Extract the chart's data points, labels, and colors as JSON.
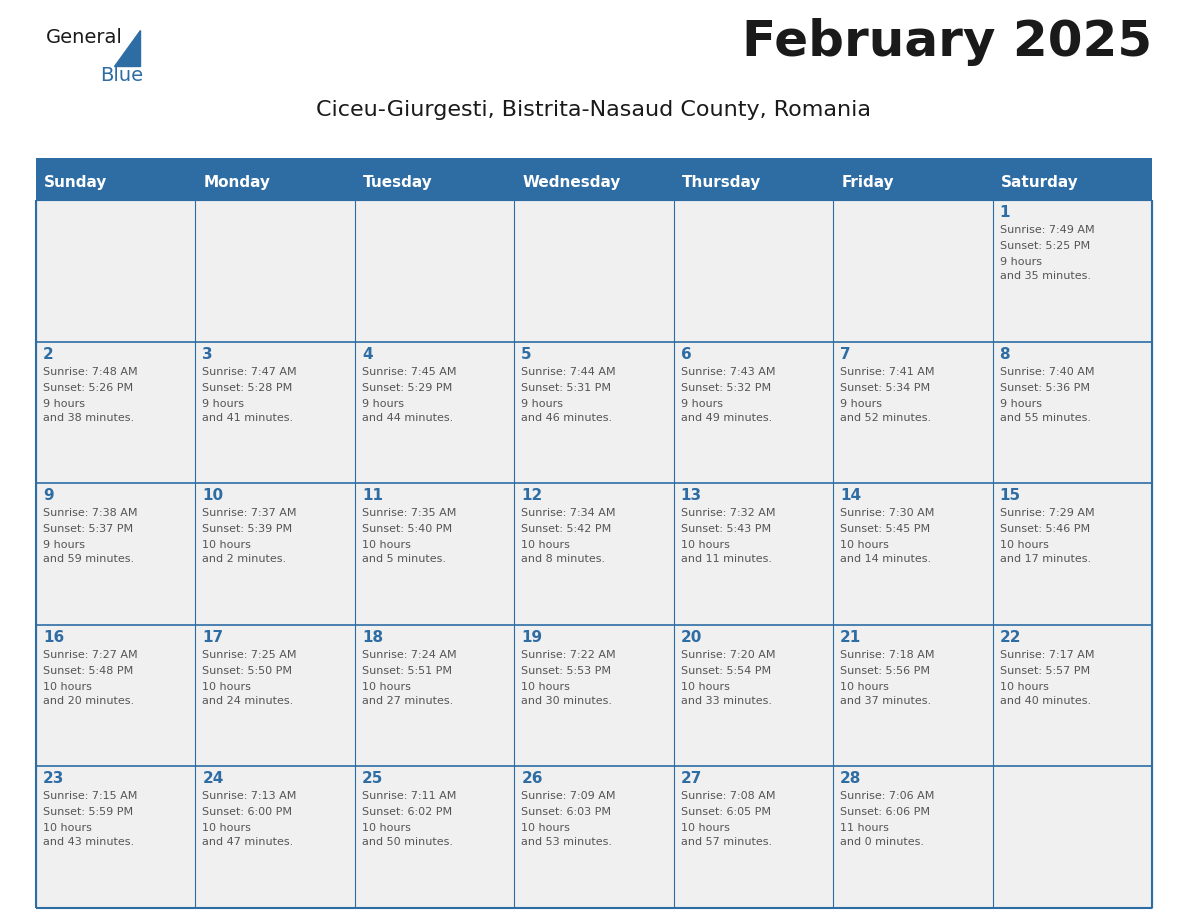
{
  "title": "February 2025",
  "subtitle": "Ciceu-Giurgesti, Bistrita-Nasaud County, Romania",
  "days_of_week": [
    "Sunday",
    "Monday",
    "Tuesday",
    "Wednesday",
    "Thursday",
    "Friday",
    "Saturday"
  ],
  "header_bg_color": "#2E6DA4",
  "header_text_color": "#FFFFFF",
  "cell_bg_color": "#F0F0F0",
  "grid_line_color": "#2E6DA4",
  "title_color": "#1a1a1a",
  "subtitle_color": "#1a1a1a",
  "day_number_color": "#2E6DA4",
  "cell_text_color": "#555555",
  "logo_general_color": "#1a1a1a",
  "logo_blue_color": "#2E6DA4",
  "calendar_data": [
    [
      null,
      null,
      null,
      null,
      null,
      null,
      {
        "day": 1,
        "sunrise": "7:49 AM",
        "sunset": "5:25 PM",
        "daylight": "9 hours\nand 35 minutes."
      }
    ],
    [
      {
        "day": 2,
        "sunrise": "7:48 AM",
        "sunset": "5:26 PM",
        "daylight": "9 hours\nand 38 minutes."
      },
      {
        "day": 3,
        "sunrise": "7:47 AM",
        "sunset": "5:28 PM",
        "daylight": "9 hours\nand 41 minutes."
      },
      {
        "day": 4,
        "sunrise": "7:45 AM",
        "sunset": "5:29 PM",
        "daylight": "9 hours\nand 44 minutes."
      },
      {
        "day": 5,
        "sunrise": "7:44 AM",
        "sunset": "5:31 PM",
        "daylight": "9 hours\nand 46 minutes."
      },
      {
        "day": 6,
        "sunrise": "7:43 AM",
        "sunset": "5:32 PM",
        "daylight": "9 hours\nand 49 minutes."
      },
      {
        "day": 7,
        "sunrise": "7:41 AM",
        "sunset": "5:34 PM",
        "daylight": "9 hours\nand 52 minutes."
      },
      {
        "day": 8,
        "sunrise": "7:40 AM",
        "sunset": "5:36 PM",
        "daylight": "9 hours\nand 55 minutes."
      }
    ],
    [
      {
        "day": 9,
        "sunrise": "7:38 AM",
        "sunset": "5:37 PM",
        "daylight": "9 hours\nand 59 minutes."
      },
      {
        "day": 10,
        "sunrise": "7:37 AM",
        "sunset": "5:39 PM",
        "daylight": "10 hours\nand 2 minutes."
      },
      {
        "day": 11,
        "sunrise": "7:35 AM",
        "sunset": "5:40 PM",
        "daylight": "10 hours\nand 5 minutes."
      },
      {
        "day": 12,
        "sunrise": "7:34 AM",
        "sunset": "5:42 PM",
        "daylight": "10 hours\nand 8 minutes."
      },
      {
        "day": 13,
        "sunrise": "7:32 AM",
        "sunset": "5:43 PM",
        "daylight": "10 hours\nand 11 minutes."
      },
      {
        "day": 14,
        "sunrise": "7:30 AM",
        "sunset": "5:45 PM",
        "daylight": "10 hours\nand 14 minutes."
      },
      {
        "day": 15,
        "sunrise": "7:29 AM",
        "sunset": "5:46 PM",
        "daylight": "10 hours\nand 17 minutes."
      }
    ],
    [
      {
        "day": 16,
        "sunrise": "7:27 AM",
        "sunset": "5:48 PM",
        "daylight": "10 hours\nand 20 minutes."
      },
      {
        "day": 17,
        "sunrise": "7:25 AM",
        "sunset": "5:50 PM",
        "daylight": "10 hours\nand 24 minutes."
      },
      {
        "day": 18,
        "sunrise": "7:24 AM",
        "sunset": "5:51 PM",
        "daylight": "10 hours\nand 27 minutes."
      },
      {
        "day": 19,
        "sunrise": "7:22 AM",
        "sunset": "5:53 PM",
        "daylight": "10 hours\nand 30 minutes."
      },
      {
        "day": 20,
        "sunrise": "7:20 AM",
        "sunset": "5:54 PM",
        "daylight": "10 hours\nand 33 minutes."
      },
      {
        "day": 21,
        "sunrise": "7:18 AM",
        "sunset": "5:56 PM",
        "daylight": "10 hours\nand 37 minutes."
      },
      {
        "day": 22,
        "sunrise": "7:17 AM",
        "sunset": "5:57 PM",
        "daylight": "10 hours\nand 40 minutes."
      }
    ],
    [
      {
        "day": 23,
        "sunrise": "7:15 AM",
        "sunset": "5:59 PM",
        "daylight": "10 hours\nand 43 minutes."
      },
      {
        "day": 24,
        "sunrise": "7:13 AM",
        "sunset": "6:00 PM",
        "daylight": "10 hours\nand 47 minutes."
      },
      {
        "day": 25,
        "sunrise": "7:11 AM",
        "sunset": "6:02 PM",
        "daylight": "10 hours\nand 50 minutes."
      },
      {
        "day": 26,
        "sunrise": "7:09 AM",
        "sunset": "6:03 PM",
        "daylight": "10 hours\nand 53 minutes."
      },
      {
        "day": 27,
        "sunrise": "7:08 AM",
        "sunset": "6:05 PM",
        "daylight": "10 hours\nand 57 minutes."
      },
      {
        "day": 28,
        "sunrise": "7:06 AM",
        "sunset": "6:06 PM",
        "daylight": "11 hours\nand 0 minutes."
      },
      null
    ]
  ]
}
